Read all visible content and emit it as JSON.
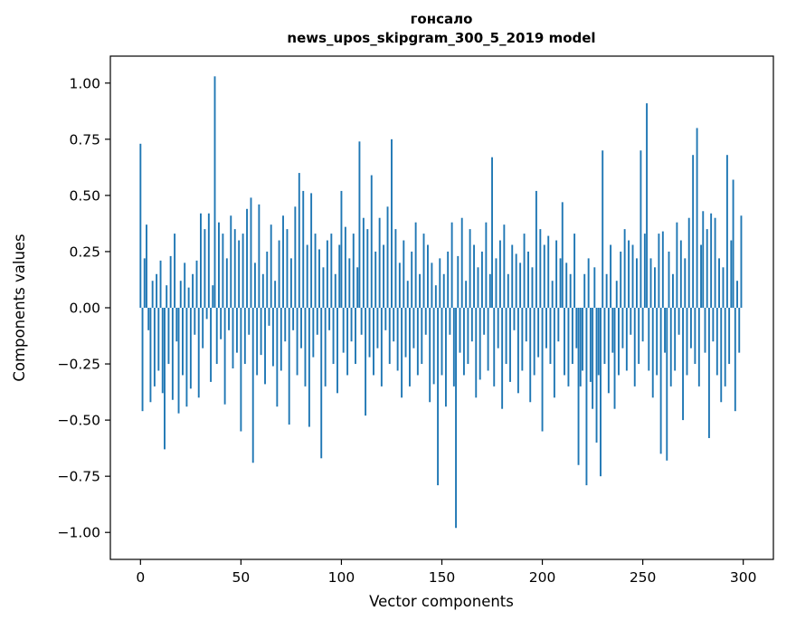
{
  "title": {
    "line1": "гонсало",
    "line2": "news_upos_skipgram_300_5_2019 model"
  },
  "chart_data": {
    "type": "bar",
    "title": "гонсало — news_upos_skipgram_300_5_2019 model",
    "xlabel": "Vector components",
    "ylabel": "Components values",
    "xlim": [
      -15,
      315
    ],
    "ylim": [
      -1.12,
      1.12
    ],
    "x_ticks": [
      0,
      50,
      100,
      150,
      200,
      250,
      300
    ],
    "y_ticks": [
      -1.0,
      -0.75,
      -0.5,
      -0.25,
      0.0,
      0.25,
      0.5,
      0.75,
      1.0
    ],
    "bar_color": "#1f77b4",
    "grid": false,
    "legend": "none",
    "values": [
      0.73,
      -0.46,
      0.22,
      0.37,
      -0.1,
      -0.42,
      0.12,
      -0.35,
      0.15,
      -0.28,
      0.21,
      -0.38,
      -0.63,
      0.1,
      -0.25,
      0.23,
      -0.41,
      0.33,
      -0.15,
      -0.47,
      0.12,
      -0.3,
      0.2,
      -0.44,
      0.09,
      -0.36,
      0.15,
      -0.12,
      0.21,
      -0.4,
      0.42,
      -0.18,
      0.35,
      -0.05,
      0.42,
      -0.33,
      0.1,
      1.03,
      -0.25,
      0.38,
      -0.14,
      0.33,
      -0.43,
      0.22,
      -0.1,
      0.41,
      -0.27,
      0.35,
      -0.2,
      0.3,
      -0.55,
      0.33,
      -0.25,
      0.44,
      -0.12,
      0.49,
      -0.69,
      0.2,
      -0.3,
      0.46,
      -0.21,
      0.15,
      -0.34,
      0.25,
      -0.08,
      0.37,
      -0.26,
      0.12,
      -0.44,
      0.3,
      -0.28,
      0.41,
      -0.15,
      0.35,
      -0.52,
      0.22,
      -0.1,
      0.45,
      -0.3,
      0.6,
      -0.18,
      0.52,
      -0.35,
      0.28,
      -0.53,
      0.51,
      -0.22,
      0.33,
      -0.12,
      0.26,
      -0.67,
      0.18,
      -0.35,
      0.3,
      -0.1,
      0.33,
      -0.25,
      0.15,
      -0.38,
      0.28,
      0.52,
      -0.2,
      0.36,
      -0.3,
      0.22,
      -0.15,
      0.33,
      -0.25,
      0.18,
      0.74,
      -0.12,
      0.4,
      -0.48,
      0.35,
      -0.22,
      0.59,
      -0.3,
      0.25,
      -0.18,
      0.4,
      -0.35,
      0.28,
      -0.1,
      0.45,
      -0.25,
      0.75,
      -0.15,
      0.35,
      -0.28,
      0.2,
      -0.4,
      0.3,
      -0.22,
      0.12,
      -0.35,
      0.25,
      -0.18,
      0.38,
      -0.3,
      0.15,
      -0.25,
      0.33,
      -0.12,
      0.28,
      -0.42,
      0.2,
      -0.34,
      0.1,
      -0.79,
      0.22,
      -0.3,
      0.15,
      -0.44,
      0.25,
      -0.12,
      0.38,
      -0.35,
      -0.98,
      0.23,
      -0.2,
      0.4,
      -0.3,
      0.12,
      -0.25,
      0.35,
      -0.15,
      0.28,
      -0.4,
      0.18,
      -0.32,
      0.25,
      -0.12,
      0.38,
      -0.28,
      0.15,
      0.67,
      -0.35,
      0.22,
      -0.18,
      0.3,
      -0.45,
      0.37,
      -0.25,
      0.15,
      -0.33,
      0.28,
      -0.1,
      0.24,
      -0.38,
      0.2,
      -0.28,
      0.33,
      -0.15,
      0.25,
      -0.42,
      0.18,
      -0.3,
      0.52,
      -0.22,
      0.35,
      -0.55,
      0.28,
      -0.18,
      0.32,
      -0.25,
      0.12,
      -0.4,
      0.3,
      -0.15,
      0.22,
      0.47,
      -0.3,
      0.2,
      -0.35,
      0.15,
      -0.25,
      0.33,
      -0.18,
      -0.7,
      -0.35,
      -0.28,
      0.15,
      -0.79,
      0.22,
      -0.33,
      -0.45,
      0.18,
      -0.6,
      -0.3,
      -0.75,
      0.7,
      -0.25,
      0.15,
      -0.38,
      0.28,
      -0.2,
      -0.45,
      0.12,
      -0.3,
      0.25,
      -0.18,
      0.35,
      -0.28,
      0.3,
      -0.12,
      0.28,
      -0.35,
      0.22,
      -0.25,
      0.7,
      -0.15,
      0.33,
      0.91,
      -0.28,
      0.22,
      -0.4,
      0.18,
      -0.3,
      0.33,
      -0.65,
      0.34,
      -0.2,
      -0.68,
      0.25,
      -0.35,
      0.15,
      -0.28,
      0.38,
      -0.12,
      0.3,
      -0.5,
      0.22,
      -0.3,
      0.4,
      -0.18,
      0.68,
      -0.25,
      0.8,
      -0.35,
      0.28,
      0.43,
      -0.2,
      0.35,
      -0.58,
      0.42,
      -0.15,
      0.4,
      -0.3,
      0.22,
      -0.42,
      0.18,
      -0.35,
      0.68,
      -0.25,
      0.3,
      0.57,
      -0.46,
      0.12,
      -0.2,
      0.41
    ]
  }
}
